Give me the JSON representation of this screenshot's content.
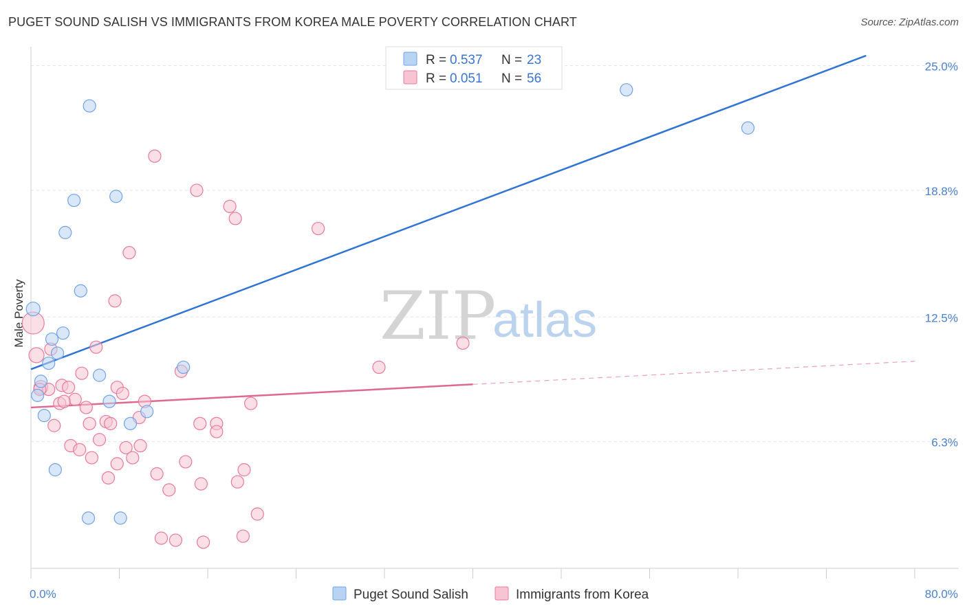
{
  "title": "PUGET SOUND SALISH VS IMMIGRANTS FROM KOREA MALE POVERTY CORRELATION CHART",
  "source": "Source: ZipAtlas.com",
  "watermark": {
    "zip": "ZIP",
    "atlas": "atlas"
  },
  "chart_data": {
    "type": "scatter",
    "xlabel": "",
    "ylabel": "Male Poverty",
    "xlim": [
      0,
      80
    ],
    "ylim": [
      0,
      25.6
    ],
    "y_ticks": [
      6.3,
      12.5,
      18.8,
      25.0
    ],
    "y_tick_labels": [
      "6.3%",
      "12.5%",
      "18.8%",
      "25.0%"
    ],
    "x_tick_labels": [
      "0.0%",
      "80.0%"
    ],
    "grid": true,
    "legend_position": "top-center",
    "series": [
      {
        "name": "Puget Sound Salish",
        "color": "#6fa3e8",
        "fill": "#b9d3f3",
        "R_label": "R =",
        "R": "0.537",
        "N_label": "N =",
        "N": "23",
        "trend": {
          "x0": 0,
          "y0": 9.9,
          "x1": 75.6,
          "y1": 25.5,
          "solid_to": 75.6
        },
        "points": [
          [
            0.2,
            12.9,
            10
          ],
          [
            5.3,
            23.0,
            9
          ],
          [
            53.9,
            23.8,
            9
          ],
          [
            64.9,
            21.9,
            9
          ],
          [
            3.9,
            18.3,
            9
          ],
          [
            7.7,
            18.5,
            9
          ],
          [
            3.1,
            16.7,
            9
          ],
          [
            4.5,
            13.8,
            9
          ],
          [
            2.9,
            11.7,
            9
          ],
          [
            1.9,
            11.4,
            9
          ],
          [
            2.4,
            10.7,
            9
          ],
          [
            1.6,
            10.2,
            9
          ],
          [
            6.2,
            9.6,
            9
          ],
          [
            13.8,
            10.0,
            9
          ],
          [
            0.9,
            9.3,
            9
          ],
          [
            0.6,
            8.6,
            9
          ],
          [
            7.1,
            8.3,
            9
          ],
          [
            10.5,
            7.8,
            9
          ],
          [
            1.2,
            7.6,
            9
          ],
          [
            9.0,
            7.2,
            9
          ],
          [
            2.2,
            4.9,
            9
          ],
          [
            5.2,
            2.5,
            9
          ],
          [
            8.1,
            2.5,
            9
          ]
        ]
      },
      {
        "name": "Immigrants from Korea",
        "color": "#e8799a",
        "fill": "#f6c4d3",
        "R_label": "R =",
        "R": "0.051",
        "N_label": "N =",
        "N": "56",
        "trend": {
          "x0": 0,
          "y0": 8.0,
          "x1": 80,
          "y1": 10.3,
          "solid_to": 40.0
        },
        "points": [
          [
            0.2,
            12.2,
            16
          ],
          [
            11.2,
            20.5,
            9
          ],
          [
            15.0,
            18.8,
            9
          ],
          [
            18.0,
            18.0,
            9
          ],
          [
            18.5,
            17.4,
            9
          ],
          [
            26.0,
            16.9,
            9
          ],
          [
            8.9,
            15.7,
            9
          ],
          [
            7.6,
            13.3,
            9
          ],
          [
            39.1,
            11.2,
            9
          ],
          [
            0.5,
            10.6,
            11
          ],
          [
            5.9,
            11.0,
            9
          ],
          [
            1.8,
            10.9,
            9
          ],
          [
            31.5,
            10.0,
            9
          ],
          [
            13.6,
            9.8,
            9
          ],
          [
            4.6,
            9.7,
            9
          ],
          [
            0.9,
            9.0,
            10
          ],
          [
            1.6,
            8.9,
            9
          ],
          [
            2.8,
            9.1,
            9
          ],
          [
            3.4,
            9.0,
            9
          ],
          [
            7.8,
            9.0,
            9
          ],
          [
            8.3,
            8.7,
            9
          ],
          [
            4.0,
            8.4,
            9
          ],
          [
            10.3,
            8.3,
            9
          ],
          [
            19.9,
            8.2,
            9
          ],
          [
            2.6,
            8.2,
            9
          ],
          [
            3.0,
            8.3,
            9
          ],
          [
            5.0,
            8.0,
            9
          ],
          [
            9.8,
            7.5,
            9
          ],
          [
            6.8,
            7.3,
            9
          ],
          [
            5.3,
            7.2,
            9
          ],
          [
            7.2,
            7.2,
            9
          ],
          [
            15.3,
            7.2,
            9
          ],
          [
            16.8,
            7.2,
            9
          ],
          [
            2.1,
            7.1,
            9
          ],
          [
            16.8,
            6.8,
            9
          ],
          [
            3.6,
            6.1,
            9
          ],
          [
            4.4,
            5.9,
            9
          ],
          [
            8.6,
            6.0,
            9
          ],
          [
            9.9,
            6.1,
            9
          ],
          [
            6.2,
            6.4,
            9
          ],
          [
            5.5,
            5.5,
            9
          ],
          [
            9.2,
            5.5,
            9
          ],
          [
            7.8,
            5.2,
            9
          ],
          [
            14.0,
            5.3,
            9
          ],
          [
            11.4,
            4.7,
            9
          ],
          [
            19.3,
            4.9,
            9
          ],
          [
            7.0,
            4.5,
            9
          ],
          [
            15.4,
            4.2,
            9
          ],
          [
            18.7,
            4.3,
            9
          ],
          [
            12.5,
            3.9,
            9
          ],
          [
            20.5,
            2.7,
            9
          ],
          [
            11.8,
            1.5,
            9
          ],
          [
            13.1,
            1.4,
            9
          ],
          [
            15.6,
            1.3,
            9
          ],
          [
            19.2,
            1.6,
            9
          ],
          [
            0.8,
            8.9,
            9
          ]
        ]
      }
    ]
  }
}
